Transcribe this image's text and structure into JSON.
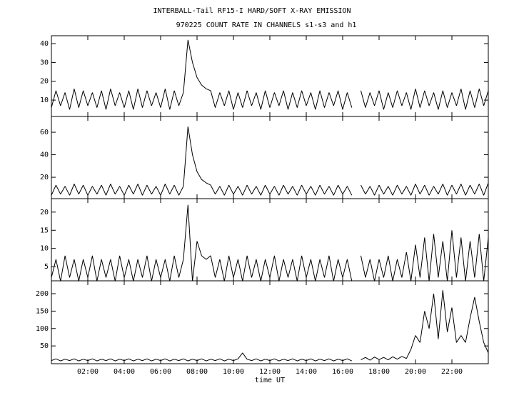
{
  "chart_data": {
    "type": "line",
    "title": "INTERBALL-Tail RF15-I HARD/SOFT X-RAY EMISSION",
    "subtitle": "970225  COUNT RATE IN CHANNELS s1-s3 and h1",
    "xlabel": "time UT",
    "xlim": [
      0,
      24
    ],
    "xticks": [
      {
        "value": 2,
        "label": "02:00"
      },
      {
        "value": 4,
        "label": "04:00"
      },
      {
        "value": 6,
        "label": "06:00"
      },
      {
        "value": 8,
        "label": "08:00"
      },
      {
        "value": 10,
        "label": "10:00"
      },
      {
        "value": 12,
        "label": "12:00"
      },
      {
        "value": 14,
        "label": "14:00"
      },
      {
        "value": 16,
        "label": "16:00"
      },
      {
        "value": 18,
        "label": "18:00"
      },
      {
        "value": 20,
        "label": "20:00"
      },
      {
        "value": 22,
        "label": "22:00"
      }
    ],
    "x": [
      0,
      0.25,
      0.5,
      0.75,
      1,
      1.25,
      1.5,
      1.75,
      2,
      2.25,
      2.5,
      2.75,
      3,
      3.25,
      3.5,
      3.75,
      4,
      4.25,
      4.5,
      4.75,
      5,
      5.25,
      5.5,
      5.75,
      6,
      6.25,
      6.5,
      6.75,
      7,
      7.25,
      7.5,
      7.75,
      8,
      8.25,
      8.5,
      8.75,
      9,
      9.25,
      9.5,
      9.75,
      10,
      10.25,
      10.5,
      10.75,
      11,
      11.25,
      11.5,
      11.75,
      12,
      12.25,
      12.5,
      12.75,
      13,
      13.25,
      13.5,
      13.75,
      14,
      14.25,
      14.5,
      14.75,
      15,
      15.25,
      15.5,
      15.75,
      16,
      16.25,
      16.5,
      16.75,
      17,
      17.25,
      17.5,
      17.75,
      18,
      18.25,
      18.5,
      18.75,
      19,
      19.25,
      19.5,
      19.75,
      20,
      20.25,
      20.5,
      20.75,
      21,
      21.25,
      21.5,
      21.75,
      22,
      22.25,
      22.5,
      22.75,
      23,
      23.25,
      23.5,
      23.75,
      24
    ],
    "series": [
      {
        "color": "#000000",
        "ylim": [
          1.3,
          44.2
        ],
        "yticks": [
          10,
          20,
          30,
          40
        ],
        "values": [
          6,
          15,
          7,
          14,
          5,
          16,
          6,
          15,
          7,
          14,
          6,
          15,
          5,
          16,
          7,
          14,
          6,
          15,
          5,
          16,
          6,
          15,
          7,
          14,
          6,
          16,
          5,
          15,
          7,
          14,
          42,
          30,
          22,
          18,
          16,
          15,
          6,
          14,
          7,
          15,
          5,
          14,
          6,
          15,
          7,
          14,
          5,
          15,
          6,
          14,
          7,
          15,
          5,
          14,
          6,
          15,
          7,
          14,
          5,
          15,
          6,
          14,
          7,
          15,
          5,
          14,
          6,
          null,
          15,
          6,
          14,
          7,
          15,
          5,
          14,
          6,
          15,
          7,
          14,
          5,
          16,
          6,
          15,
          7,
          14,
          5,
          15,
          6,
          14,
          7,
          16,
          5,
          15,
          6,
          16,
          7,
          15
        ]
      },
      {
        "color": "#000000",
        "ylim": [
          1,
          74
        ],
        "yticks": [
          20,
          40,
          60
        ],
        "values": [
          4,
          13,
          5,
          12,
          4,
          14,
          5,
          13,
          4,
          12,
          5,
          13,
          4,
          14,
          5,
          12,
          4,
          13,
          5,
          14,
          4,
          13,
          5,
          12,
          4,
          14,
          5,
          13,
          4,
          12,
          65,
          40,
          25,
          18,
          15,
          13,
          5,
          12,
          4,
          13,
          5,
          12,
          4,
          13,
          5,
          12,
          4,
          13,
          5,
          12,
          4,
          13,
          5,
          12,
          4,
          13,
          5,
          12,
          4,
          13,
          5,
          12,
          4,
          13,
          5,
          12,
          4,
          null,
          13,
          5,
          12,
          4,
          13,
          5,
          12,
          4,
          13,
          5,
          12,
          4,
          14,
          5,
          13,
          4,
          12,
          5,
          14,
          4,
          13,
          5,
          14,
          4,
          13,
          5,
          14,
          4,
          15
        ]
      },
      {
        "color": "#000000",
        "ylim": [
          1.1,
          23.7
        ],
        "yticks": [
          5,
          10,
          15,
          20
        ],
        "values": [
          2,
          7,
          1,
          8,
          2,
          7,
          1,
          7,
          2,
          8,
          1,
          7,
          2,
          7,
          1,
          8,
          2,
          7,
          1,
          7,
          2,
          8,
          1,
          7,
          2,
          7,
          1,
          8,
          2,
          7,
          22,
          1,
          12,
          8,
          7,
          8,
          2,
          7,
          1,
          8,
          2,
          7,
          1,
          8,
          2,
          7,
          1,
          7,
          2,
          8,
          1,
          7,
          2,
          7,
          1,
          8,
          2,
          7,
          1,
          7,
          2,
          8,
          1,
          7,
          2,
          7,
          1,
          null,
          8,
          2,
          7,
          1,
          7,
          2,
          8,
          1,
          7,
          2,
          9,
          1,
          11,
          2,
          13,
          1,
          14,
          2,
          12,
          1,
          15,
          2,
          13,
          1,
          12,
          2,
          14,
          1,
          13
        ]
      },
      {
        "color": "#000000",
        "ylim": [
          -1,
          237
        ],
        "yticks": [
          50,
          100,
          150,
          200
        ],
        "values": [
          8,
          13,
          7,
          12,
          8,
          13,
          7,
          12,
          8,
          13,
          7,
          12,
          8,
          13,
          7,
          12,
          8,
          13,
          7,
          12,
          8,
          13,
          7,
          12,
          8,
          13,
          7,
          12,
          8,
          13,
          7,
          12,
          8,
          13,
          7,
          12,
          8,
          13,
          7,
          12,
          8,
          13,
          30,
          12,
          8,
          13,
          7,
          12,
          8,
          13,
          7,
          12,
          8,
          13,
          7,
          12,
          8,
          13,
          7,
          12,
          8,
          13,
          7,
          12,
          8,
          13,
          7,
          null,
          10,
          17,
          9,
          18,
          11,
          17,
          10,
          19,
          12,
          20,
          14,
          40,
          80,
          60,
          150,
          100,
          200,
          70,
          210,
          90,
          160,
          60,
          80,
          60,
          130,
          190,
          120,
          60,
          30
        ]
      }
    ]
  }
}
